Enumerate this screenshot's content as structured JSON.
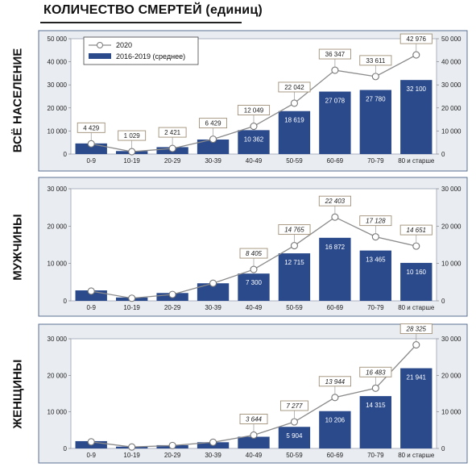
{
  "title": "КОЛИЧЕСТВО СМЕРТЕЙ (единиц)",
  "legend": {
    "line_label": "2020",
    "bar_label": "2016-2019 (среднее)",
    "placement": "top-left"
  },
  "colors": {
    "bar": "#2a4a8c",
    "line": "#8a8a8a",
    "panel_bg": "#e9ecf1",
    "panel_border": "#5a6f94",
    "callout_border": "#a09078"
  },
  "chart_data": [
    {
      "type": "bar",
      "panel_label": "ВСЁ НАСЕЛЕНИЕ",
      "categories": [
        "0-9",
        "10-19",
        "20-29",
        "30-39",
        "40-49",
        "50-59",
        "60-69",
        "70-79",
        "80 и старше"
      ],
      "ylim": [
        0,
        50000
      ],
      "yticks": [
        "0",
        "10 000",
        "20 000",
        "30 000",
        "40 000",
        "50 000"
      ],
      "series": [
        {
          "name": "2016-2019 (среднее)",
          "kind": "bar",
          "values": [
            4600,
            1300,
            3000,
            6300,
            10362,
            18619,
            27078,
            27780,
            32100
          ],
          "labels": [
            "",
            "",
            "",
            "",
            "10 362",
            "18 619",
            "27 078",
            "27 780",
            "32 100"
          ]
        },
        {
          "name": "2020",
          "kind": "line",
          "values": [
            4429,
            1029,
            2421,
            6429,
            12049,
            22042,
            36347,
            33611,
            42976
          ],
          "labels": [
            "4 429",
            "1 029",
            "2 421",
            "6 429",
            "12 049",
            "22 042",
            "36 347",
            "33 611",
            "42 976"
          ]
        }
      ],
      "show_legend": true,
      "italic_callouts": false
    },
    {
      "type": "bar",
      "panel_label": "МУЖЧИНЫ",
      "categories": [
        "0-9",
        "10-19",
        "20-29",
        "30-39",
        "40-49",
        "50-59",
        "60-69",
        "70-79",
        "80 и старше"
      ],
      "ylim": [
        0,
        30000
      ],
      "yticks": [
        "0",
        "10 000",
        "20 000",
        "30 000"
      ],
      "series": [
        {
          "name": "2016-2019 (среднее)",
          "kind": "bar",
          "values": [
            2800,
            900,
            2100,
            4700,
            7300,
            12715,
            16872,
            13465,
            10160
          ],
          "labels": [
            "",
            "",
            "",
            "",
            "7 300",
            "12 715",
            "16 872",
            "13 465",
            "10 160"
          ]
        },
        {
          "name": "2020",
          "kind": "line",
          "values": [
            2600,
            700,
            1700,
            4700,
            8405,
            14765,
            22403,
            17128,
            14651
          ],
          "labels": [
            "",
            "",
            "",
            "",
            "8 405",
            "14 765",
            "22 403",
            "17 128",
            "14 651"
          ]
        }
      ],
      "show_legend": false,
      "italic_callouts": true
    },
    {
      "type": "bar",
      "panel_label": "ЖЕНЩИНЫ",
      "categories": [
        "0-9",
        "10-19",
        "20-29",
        "30-39",
        "40-49",
        "50-59",
        "60-69",
        "70-79",
        "80 и старше"
      ],
      "ylim": [
        0,
        30000
      ],
      "yticks": [
        "0",
        "10 000",
        "20 000",
        "30 000"
      ],
      "series": [
        {
          "name": "2016-2019 (среднее)",
          "kind": "bar",
          "values": [
            2000,
            500,
            900,
            1700,
            3200,
            5904,
            10206,
            14315,
            21941
          ],
          "labels": [
            "",
            "",
            "",
            "",
            "",
            "5 904",
            "10 206",
            "14 315",
            "21 941"
          ]
        },
        {
          "name": "2020",
          "kind": "line",
          "values": [
            1800,
            400,
            800,
            1700,
            3644,
            7277,
            13944,
            16483,
            28325
          ],
          "labels": [
            "",
            "",
            "",
            "",
            "3 644",
            "7 277",
            "13 944",
            "16 483",
            "28 325"
          ]
        }
      ],
      "show_legend": false,
      "italic_callouts": true
    }
  ]
}
